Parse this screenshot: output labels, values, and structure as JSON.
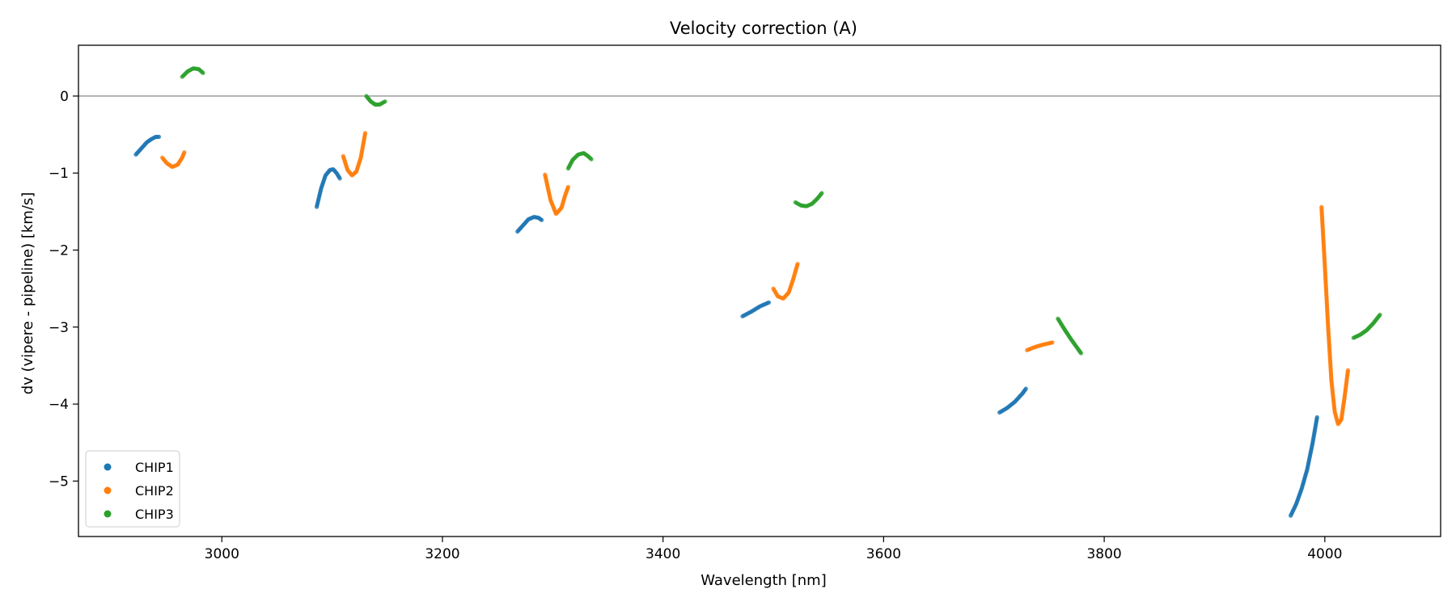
{
  "chart_data": {
    "type": "scatter",
    "title": "Velocity correction (A)",
    "xlabel": "Wavelength [nm]",
    "ylabel": "dv (vipere - pipeline) [km/s]",
    "xlim": [
      2870,
      4105
    ],
    "ylim": [
      -5.72,
      0.66
    ],
    "xticks": [
      3000,
      3200,
      3400,
      3600,
      3800,
      4000
    ],
    "yticks": [
      0,
      -1,
      -2,
      -3,
      -4,
      -5
    ],
    "yticklabels": [
      "0",
      "−1",
      "−2",
      "−3",
      "−4",
      "−5"
    ],
    "hline": 0,
    "legend_position": "lower-left",
    "series": [
      {
        "name": "CHIP1",
        "color": "#1f77b4",
        "segments": [
          [
            [
              2922,
              -0.76
            ],
            [
              2927,
              -0.68
            ],
            [
              2932,
              -0.6
            ],
            [
              2936,
              -0.56
            ],
            [
              2940,
              -0.53
            ],
            [
              2943,
              -0.53
            ]
          ],
          [
            [
              3086,
              -1.44
            ],
            [
              3090,
              -1.2
            ],
            [
              3094,
              -1.03
            ],
            [
              3098,
              -0.96
            ],
            [
              3101,
              -0.95
            ],
            [
              3104,
              -1.0
            ],
            [
              3107,
              -1.07
            ]
          ],
          [
            [
              3268,
              -1.76
            ],
            [
              3273,
              -1.68
            ],
            [
              3278,
              -1.6
            ],
            [
              3283,
              -1.57
            ],
            [
              3287,
              -1.58
            ],
            [
              3290,
              -1.61
            ]
          ],
          [
            [
              3472,
              -2.86
            ],
            [
              3480,
              -2.8
            ],
            [
              3488,
              -2.73
            ],
            [
              3496,
              -2.68
            ]
          ],
          [
            [
              3705,
              -4.11
            ],
            [
              3712,
              -4.05
            ],
            [
              3719,
              -3.97
            ],
            [
              3726,
              -3.86
            ],
            [
              3729,
              -3.8
            ]
          ],
          [
            [
              3969,
              -5.45
            ],
            [
              3974,
              -5.3
            ],
            [
              3979,
              -5.1
            ],
            [
              3984,
              -4.85
            ],
            [
              3989,
              -4.5
            ],
            [
              3993,
              -4.17
            ]
          ]
        ]
      },
      {
        "name": "CHIP2",
        "color": "#ff7f0e",
        "segments": [
          [
            [
              2946,
              -0.8
            ],
            [
              2950,
              -0.87
            ],
            [
              2955,
              -0.92
            ],
            [
              2960,
              -0.89
            ],
            [
              2964,
              -0.8
            ],
            [
              2966,
              -0.73
            ]
          ],
          [
            [
              3110,
              -0.78
            ],
            [
              3114,
              -0.96
            ],
            [
              3118,
              -1.03
            ],
            [
              3122,
              -0.98
            ],
            [
              3126,
              -0.8
            ],
            [
              3130,
              -0.48
            ]
          ],
          [
            [
              3293,
              -1.02
            ],
            [
              3298,
              -1.35
            ],
            [
              3303,
              -1.53
            ],
            [
              3308,
              -1.45
            ],
            [
              3311,
              -1.3
            ],
            [
              3314,
              -1.18
            ]
          ],
          [
            [
              3500,
              -2.5
            ],
            [
              3504,
              -2.6
            ],
            [
              3509,
              -2.63
            ],
            [
              3514,
              -2.55
            ],
            [
              3518,
              -2.38
            ],
            [
              3522,
              -2.18
            ]
          ],
          [
            [
              3730,
              -3.3
            ],
            [
              3737,
              -3.26
            ],
            [
              3744,
              -3.23
            ],
            [
              3750,
              -3.21
            ],
            [
              3753,
              -3.2
            ]
          ],
          [
            [
              3997,
              -1.44
            ],
            [
              4000,
              -2.2
            ],
            [
              4003,
              -3.0
            ],
            [
              4006,
              -3.7
            ],
            [
              4009,
              -4.1
            ],
            [
              4012,
              -4.26
            ],
            [
              4015,
              -4.2
            ],
            [
              4018,
              -3.9
            ],
            [
              4021,
              -3.56
            ]
          ]
        ]
      },
      {
        "name": "CHIP3",
        "color": "#2ca02c",
        "segments": [
          [
            [
              2964,
              0.25
            ],
            [
              2969,
              0.32
            ],
            [
              2974,
              0.36
            ],
            [
              2979,
              0.35
            ],
            [
              2983,
              0.3
            ]
          ],
          [
            [
              3131,
              0.0
            ],
            [
              3135,
              -0.07
            ],
            [
              3139,
              -0.11
            ],
            [
              3143,
              -0.11
            ],
            [
              3148,
              -0.07
            ]
          ],
          [
            [
              3314,
              -0.94
            ],
            [
              3318,
              -0.83
            ],
            [
              3323,
              -0.76
            ],
            [
              3328,
              -0.74
            ],
            [
              3332,
              -0.78
            ],
            [
              3335,
              -0.82
            ]
          ],
          [
            [
              3520,
              -1.38
            ],
            [
              3525,
              -1.42
            ],
            [
              3530,
              -1.43
            ],
            [
              3535,
              -1.4
            ],
            [
              3540,
              -1.33
            ],
            [
              3544,
              -1.26
            ]
          ],
          [
            [
              3758,
              -2.89
            ],
            [
              3764,
              -3.03
            ],
            [
              3770,
              -3.16
            ],
            [
              3776,
              -3.28
            ],
            [
              3779,
              -3.34
            ]
          ],
          [
            [
              4026,
              -3.14
            ],
            [
              4032,
              -3.1
            ],
            [
              4038,
              -3.04
            ],
            [
              4044,
              -2.95
            ],
            [
              4050,
              -2.84
            ]
          ]
        ]
      }
    ]
  }
}
